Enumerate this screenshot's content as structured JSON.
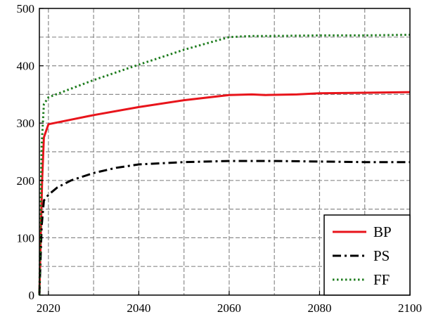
{
  "chart_data": {
    "type": "line",
    "title": "",
    "xlabel": "",
    "ylabel": "",
    "xlim": [
      2018,
      2100
    ],
    "ylim": [
      0,
      500
    ],
    "x_ticks": [
      2020,
      2040,
      2060,
      2080,
      2100
    ],
    "y_ticks": [
      0,
      100,
      200,
      300,
      400,
      500
    ],
    "grid": true,
    "legend_position": "bottom-right",
    "series": [
      {
        "name": "BP",
        "color": "#e8141b",
        "style": "solid",
        "x": [
          2018,
          2018.6,
          2019,
          2020,
          2025,
          2030,
          2040,
          2050,
          2060,
          2065,
          2068,
          2075,
          2080,
          2090,
          2100
        ],
        "y": [
          0,
          200,
          275,
          298,
          306,
          314,
          328,
          340,
          349,
          350,
          349,
          350,
          352,
          353,
          354
        ]
      },
      {
        "name": "PS",
        "color": "#000000",
        "style": "dash-dot",
        "x": [
          2018,
          2018.5,
          2019,
          2020,
          2022,
          2025,
          2030,
          2035,
          2040,
          2050,
          2060,
          2070,
          2080,
          2090,
          2100
        ],
        "y": [
          0,
          120,
          165,
          175,
          188,
          200,
          213,
          222,
          228,
          232,
          234,
          234,
          233,
          232,
          232
        ]
      },
      {
        "name": "FF",
        "color": "#1f7d1f",
        "style": "dotted",
        "x": [
          2018,
          2018.5,
          2019,
          2020,
          2025,
          2030,
          2040,
          2050,
          2060,
          2065,
          2070,
          2080,
          2090,
          2100
        ],
        "y": [
          0,
          260,
          333,
          345,
          360,
          375,
          402,
          428,
          450,
          452,
          452,
          453,
          453,
          454
        ]
      }
    ]
  }
}
